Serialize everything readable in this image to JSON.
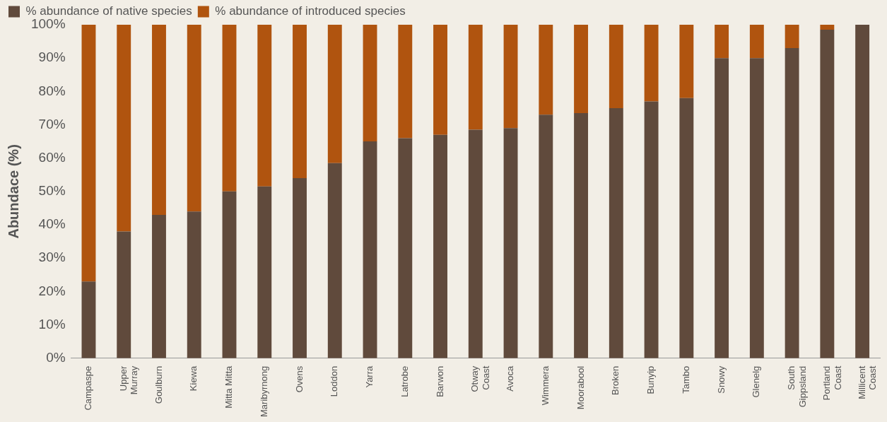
{
  "chart_data": {
    "type": "bar",
    "stacked": true,
    "ylabel": "Abundace (%)",
    "legend": "top left",
    "grid": false,
    "categories": [
      "Campaspe",
      "Upper\nMurray",
      "Goulburn",
      "Kiewa",
      "Mitta Mitta",
      "Maribyrnong",
      "Ovens",
      "Loddon",
      "Yarra",
      "Latrobe",
      "Barwon",
      "Otway\nCoast",
      "Avoca",
      "Wimmera",
      "Moorabool",
      "Broken",
      "Bunyip",
      "Tambo",
      "Snowy",
      "Glenelg",
      "South\nGippsland",
      "Portland\nCoast",
      "Millicent\nCoast"
    ],
    "series": [
      {
        "name": "% abundance of native species",
        "color": "#604a3c",
        "values": [
          23,
          38,
          43,
          44,
          50,
          51.5,
          54,
          58.5,
          65,
          66,
          67,
          68.5,
          69,
          73,
          73.5,
          75,
          77,
          78,
          90,
          90,
          93,
          98.5,
          100
        ]
      },
      {
        "name": "% abundance of introduced species",
        "color": "#b0540f",
        "values": [
          77,
          62,
          57,
          56,
          50,
          48.5,
          46,
          41.5,
          35,
          34,
          33,
          31.5,
          31,
          27,
          26.5,
          25,
          23,
          22,
          10,
          10,
          7,
          1.5,
          0
        ]
      }
    ],
    "ylim": [
      0,
      100
    ],
    "yticks": [
      {
        "value": 0,
        "label": "0%"
      },
      {
        "value": 10,
        "label": "10%"
      },
      {
        "value": 20,
        "label": "20%"
      },
      {
        "value": 30,
        "label": "30%"
      },
      {
        "value": 40,
        "label": "40%"
      },
      {
        "value": 50,
        "label": "50%"
      },
      {
        "value": 60,
        "label": "60%"
      },
      {
        "value": 70,
        "label": "70%"
      },
      {
        "value": 80,
        "label": "80%"
      },
      {
        "value": 90,
        "label": "90%"
      },
      {
        "value": 100,
        "label": "100%"
      }
    ]
  }
}
